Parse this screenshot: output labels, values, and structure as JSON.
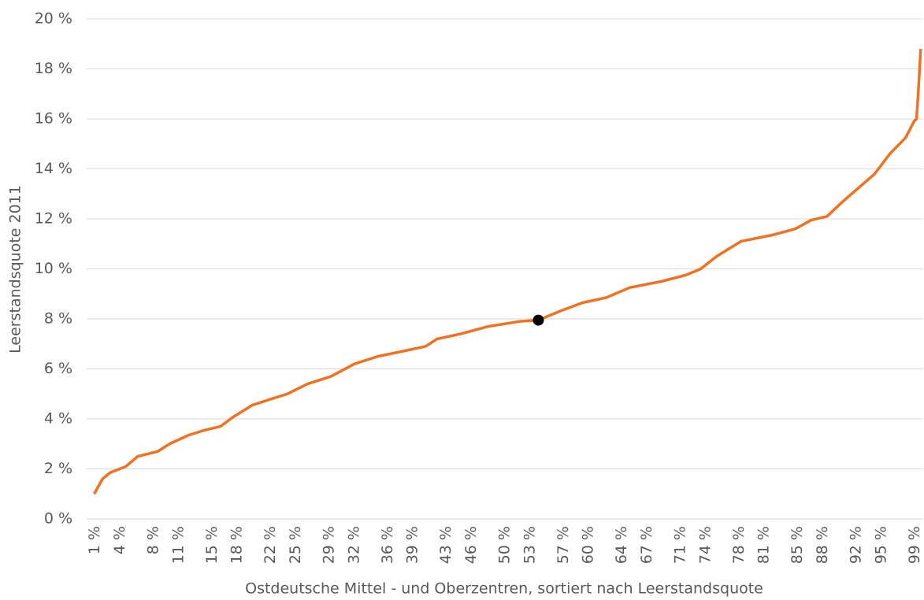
{
  "chart_data": {
    "type": "line",
    "x_label": "Ostdeutsche Mittel - und Oberzentren, sortiert nach Leerstandsquote",
    "y_label": "Leerstandsquote 2011",
    "series": [
      {
        "color": "#f07122",
        "x": [
          0.9,
          1.9,
          2.8,
          4.7,
          6.1,
          8.5,
          9.9,
          12.2,
          14.1,
          16.0,
          17.4,
          19.8,
          22.1,
          24.0,
          26.4,
          29.2,
          32.0,
          34.8,
          37.7,
          40.5,
          41.9,
          44.7,
          48.0,
          51.8,
          54.0,
          56.5,
          59.3,
          62.1,
          64.9,
          68.7,
          71.6,
          73.4,
          75.3,
          78.2,
          81.9,
          84.7,
          86.6,
          88.5,
          90.4,
          92.3,
          94.2,
          96.0,
          97.9,
          98.9,
          99.2,
          99.4,
          99.7
        ],
        "values": [
          1.0,
          1.6,
          1.85,
          2.1,
          2.5,
          2.7,
          3.0,
          3.35,
          3.55,
          3.7,
          4.05,
          4.55,
          4.8,
          5.0,
          5.4,
          5.7,
          6.2,
          6.5,
          6.7,
          6.9,
          7.2,
          7.4,
          7.7,
          7.9,
          7.95,
          8.3,
          8.65,
          8.85,
          9.25,
          9.5,
          9.75,
          10.0,
          10.5,
          11.1,
          11.35,
          11.6,
          11.95,
          12.1,
          12.7,
          13.25,
          13.8,
          14.6,
          15.25,
          15.9,
          16.0,
          17.0,
          18.8
        ]
      }
    ],
    "highlight": {
      "x": 54.0,
      "y": 7.95,
      "color": "#000000"
    },
    "xlim": [
      0,
      100
    ],
    "xticks": [
      {
        "value": 1,
        "label": "1 %"
      },
      {
        "value": 4,
        "label": "4 %"
      },
      {
        "value": 8,
        "label": "8 %"
      },
      {
        "value": 11,
        "label": "11 %"
      },
      {
        "value": 15,
        "label": "15 %"
      },
      {
        "value": 18,
        "label": "18 %"
      },
      {
        "value": 22,
        "label": "22 %"
      },
      {
        "value": 25,
        "label": "25 %"
      },
      {
        "value": 29,
        "label": "29 %"
      },
      {
        "value": 32,
        "label": "32 %"
      },
      {
        "value": 36,
        "label": "36 %"
      },
      {
        "value": 39,
        "label": "39 %"
      },
      {
        "value": 43,
        "label": "43 %"
      },
      {
        "value": 46,
        "label": "46 %"
      },
      {
        "value": 50,
        "label": "50 %"
      },
      {
        "value": 53,
        "label": "53 %"
      },
      {
        "value": 57,
        "label": "57 %"
      },
      {
        "value": 60,
        "label": "60 %"
      },
      {
        "value": 64,
        "label": "64 %"
      },
      {
        "value": 67,
        "label": "67 %"
      },
      {
        "value": 71,
        "label": "71 %"
      },
      {
        "value": 74,
        "label": "74 %"
      },
      {
        "value": 78,
        "label": "78 %"
      },
      {
        "value": 81,
        "label": "81 %"
      },
      {
        "value": 85,
        "label": "85 %"
      },
      {
        "value": 88,
        "label": "88 %"
      },
      {
        "value": 92,
        "label": "92 %"
      },
      {
        "value": 95,
        "label": "95 %"
      },
      {
        "value": 99,
        "label": "99 %"
      }
    ],
    "ylim": [
      0,
      20
    ],
    "yticks": [
      {
        "value": 0,
        "label": "0 %"
      },
      {
        "value": 2,
        "label": "2 %"
      },
      {
        "value": 4,
        "label": "4 %"
      },
      {
        "value": 6,
        "label": "6 %"
      },
      {
        "value": 8,
        "label": "8 %"
      },
      {
        "value": 10,
        "label": "10 %"
      },
      {
        "value": 12,
        "label": "12 %"
      },
      {
        "value": 14,
        "label": "14 %"
      },
      {
        "value": 16,
        "label": "16 %"
      },
      {
        "value": 18,
        "label": "18 %"
      },
      {
        "value": 20,
        "label": "20 %"
      }
    ],
    "grid": true
  }
}
